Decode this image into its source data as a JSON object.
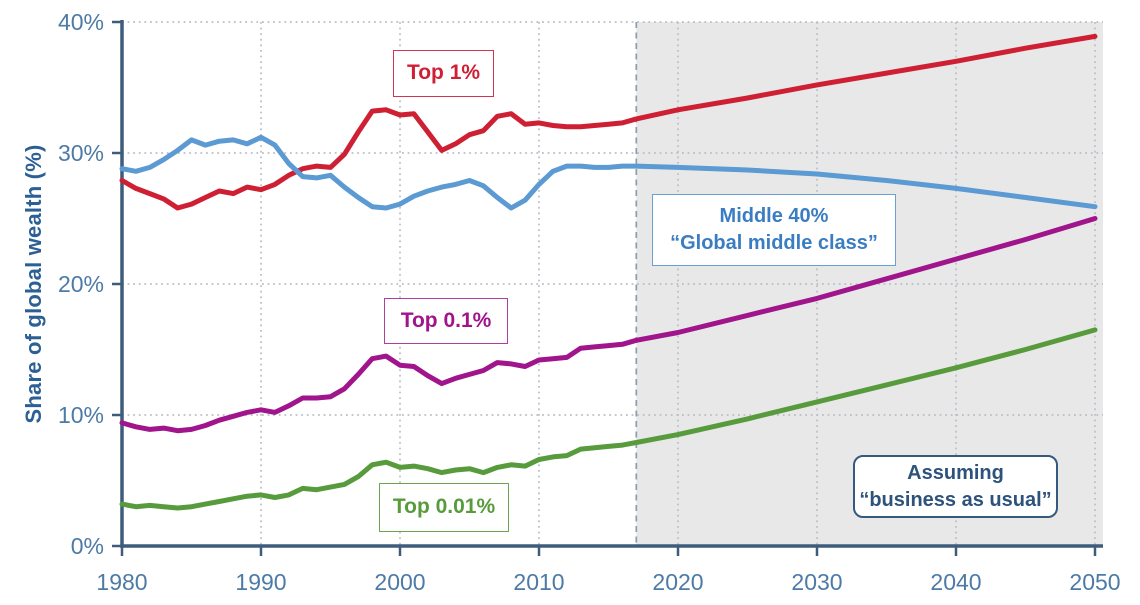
{
  "chart_data": {
    "type": "line",
    "title": "",
    "xlabel": "",
    "ylabel": "Share of global wealth (%)",
    "xlim": [
      1980,
      2050
    ],
    "ylim": [
      0,
      40
    ],
    "grid": true,
    "x_ticks": [
      1980,
      1990,
      2000,
      2010,
      2020,
      2030,
      2040,
      2050
    ],
    "y_ticks": [
      {
        "value": 0,
        "label": "0%"
      },
      {
        "value": 10,
        "label": "10%"
      },
      {
        "value": 20,
        "label": "20%"
      },
      {
        "value": 30,
        "label": "30%"
      },
      {
        "value": 40,
        "label": "40%"
      }
    ],
    "projection": {
      "start_year": 2017,
      "shade_color": "#e8e8e9",
      "boundary_color": "#8d9cae"
    },
    "x": [
      1980,
      1981,
      1982,
      1983,
      1984,
      1985,
      1986,
      1987,
      1988,
      1989,
      1990,
      1991,
      1992,
      1993,
      1994,
      1995,
      1996,
      1997,
      1998,
      1999,
      2000,
      2001,
      2002,
      2003,
      2004,
      2005,
      2006,
      2007,
      2008,
      2009,
      2010,
      2011,
      2012,
      2013,
      2014,
      2015,
      2016,
      2017,
      2020,
      2025,
      2030,
      2035,
      2040,
      2045,
      2050
    ],
    "series": [
      {
        "name": "Top 1%",
        "color": "#ce1f33",
        "values": [
          27.9,
          27.3,
          26.9,
          26.5,
          25.8,
          26.1,
          26.6,
          27.1,
          26.9,
          27.4,
          27.2,
          27.6,
          28.3,
          28.8,
          29.0,
          28.9,
          29.9,
          31.6,
          33.2,
          33.3,
          32.9,
          33.0,
          31.6,
          30.2,
          30.7,
          31.4,
          31.7,
          32.8,
          33.0,
          32.2,
          32.3,
          32.1,
          32.0,
          32.0,
          32.1,
          32.2,
          32.3,
          32.6,
          33.3,
          34.2,
          35.2,
          36.1,
          37.0,
          38.0,
          38.9
        ]
      },
      {
        "name": "Middle 40%",
        "color": "#5b9ad2",
        "values": [
          28.8,
          28.6,
          28.9,
          29.5,
          30.2,
          31.0,
          30.6,
          30.9,
          31.0,
          30.7,
          31.2,
          30.6,
          29.2,
          28.2,
          28.1,
          28.3,
          27.4,
          26.6,
          25.9,
          25.8,
          26.1,
          26.7,
          27.1,
          27.4,
          27.6,
          27.9,
          27.5,
          26.6,
          25.8,
          26.4,
          27.6,
          28.6,
          29.0,
          29.0,
          28.9,
          28.9,
          29.0,
          29.0,
          28.9,
          28.7,
          28.4,
          27.9,
          27.3,
          26.6,
          25.9
        ]
      },
      {
        "name": "Top 0.1%",
        "color": "#a0148c",
        "values": [
          9.4,
          9.1,
          8.9,
          9.0,
          8.8,
          8.9,
          9.2,
          9.6,
          9.9,
          10.2,
          10.4,
          10.2,
          10.7,
          11.3,
          11.3,
          11.4,
          12.0,
          13.1,
          14.3,
          14.5,
          13.8,
          13.7,
          13.0,
          12.4,
          12.8,
          13.1,
          13.4,
          14.0,
          13.9,
          13.7,
          14.2,
          14.3,
          14.4,
          15.1,
          15.2,
          15.3,
          15.4,
          15.7,
          16.3,
          17.6,
          18.9,
          20.4,
          21.9,
          23.4,
          25.0
        ]
      },
      {
        "name": "Top 0.01%",
        "color": "#589b3c",
        "values": [
          3.2,
          3.0,
          3.1,
          3.0,
          2.9,
          3.0,
          3.2,
          3.4,
          3.6,
          3.8,
          3.9,
          3.7,
          3.9,
          4.4,
          4.3,
          4.5,
          4.7,
          5.3,
          6.2,
          6.4,
          6.0,
          6.1,
          5.9,
          5.6,
          5.8,
          5.9,
          5.6,
          6.0,
          6.2,
          6.1,
          6.6,
          6.8,
          6.9,
          7.4,
          7.5,
          7.6,
          7.7,
          7.9,
          8.5,
          9.7,
          11.0,
          12.3,
          13.6,
          15.0,
          16.5
        ]
      }
    ],
    "labels": {
      "top1": "Top 1%",
      "middle40_line1": "Middle 40%",
      "middle40_line2": "“Global middle class”",
      "top01": "Top 0.1%",
      "top001": "Top 0.01%",
      "assuming_line1": "Assuming",
      "assuming_line2": "“business as usual”"
    },
    "colors": {
      "axis": "#3e5c7c",
      "tick_label": "#4d7aa6",
      "axis_title": "#2c5f94",
      "grid": "#b9bec6"
    }
  }
}
